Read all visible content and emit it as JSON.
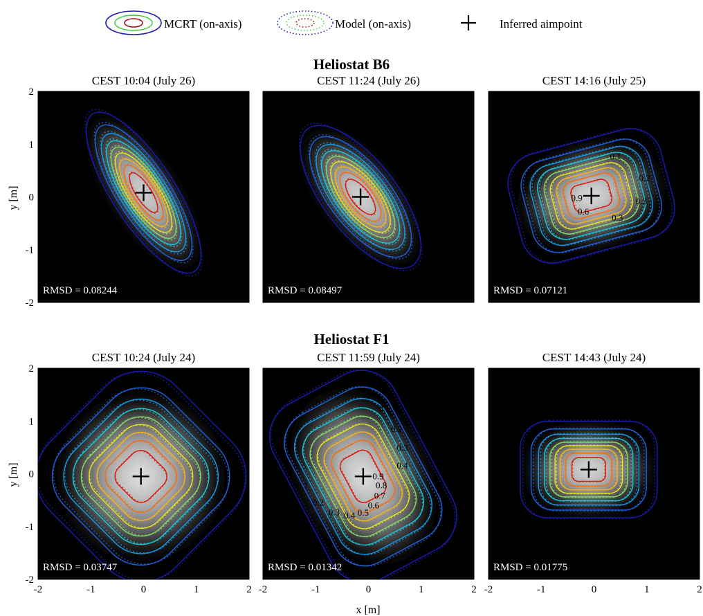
{
  "chart_data": {
    "type": "heatmap",
    "legend": {
      "items": [
        {
          "label": "MCRT (on-axis)",
          "style": "solid"
        },
        {
          "label": "Model (on-axis)",
          "style": "dotted"
        },
        {
          "label": "Inferred aimpoint",
          "style": "plus"
        }
      ],
      "placement": "top"
    },
    "axes": {
      "xlabel": "x [m]",
      "ylabel": "y [m]",
      "xlim": [
        -2,
        2
      ],
      "ylim": [
        -2,
        2
      ],
      "xticks": [
        "-2",
        "-1",
        "0",
        "1",
        "2"
      ],
      "yticks": [
        "-2",
        "-1",
        "0",
        "1",
        "2"
      ],
      "grid": false
    },
    "contour_levels": [
      0.1,
      0.2,
      0.3,
      0.4,
      0.5,
      0.6,
      0.7,
      0.8,
      0.9
    ],
    "contour_colors": [
      "#1a1aa8",
      "#1f5fd6",
      "#1596e0",
      "#19c3d6",
      "#7fd66b",
      "#e0e020",
      "#f0b020",
      "#f07018",
      "#d81e10"
    ],
    "groups": [
      {
        "title": "Heliostat B6",
        "panels": [
          {
            "subtitle": "CEST  10:04   (July 26)",
            "rmsd": "RMSD = 0.08244",
            "aimpoint": [
              0.0,
              0.08
            ],
            "sx": 0.62,
            "sy": 1.85,
            "angle_deg": 33,
            "contour_labels": []
          },
          {
            "subtitle": "CEST  11:24   (July 26)",
            "rmsd": "RMSD = 0.08497",
            "aimpoint": [
              -0.15,
              0.0
            ],
            "sx": 0.72,
            "sy": 1.7,
            "angle_deg": 38,
            "contour_labels": []
          },
          {
            "subtitle": "CEST  14:16   (July 25)",
            "rmsd": "RMSD = 0.07121",
            "aimpoint": [
              -0.05,
              0.02
            ],
            "sx": 1.55,
            "sy": 1.1,
            "angle_deg": 15,
            "contour_labels": [
              "0.1",
              "0.2",
              "0.3",
              "0.3",
              "0.6",
              "0.9"
            ]
          }
        ]
      },
      {
        "title": "Heliostat F1",
        "panels": [
          {
            "subtitle": "CEST  10:24   (July 24)",
            "rmsd": "RMSD = 0.03747",
            "aimpoint": [
              -0.05,
              -0.05
            ],
            "sx": 1.75,
            "sy": 1.75,
            "angle_deg": 45,
            "contour_labels": []
          },
          {
            "subtitle": "CEST  11:59   (July 24)",
            "rmsd": "RMSD = 0.01342",
            "aimpoint": [
              -0.1,
              -0.05
            ],
            "sx": 1.35,
            "sy": 1.95,
            "angle_deg": 28,
            "contour_labels": [
              "0.1",
              "0.2",
              "0.3",
              "0.4",
              "0.9",
              "0.8",
              "0.7",
              "0.6",
              "0.5",
              "0.4",
              "0.3",
              "0.2",
              "0.1"
            ]
          },
          {
            "subtitle": "CEST  14:43   (July 24)",
            "rmsd": "RMSD = 0.01775",
            "aimpoint": [
              -0.1,
              0.08
            ],
            "sx": 1.35,
            "sy": 0.95,
            "angle_deg": 0,
            "contour_labels": []
          }
        ]
      }
    ]
  }
}
